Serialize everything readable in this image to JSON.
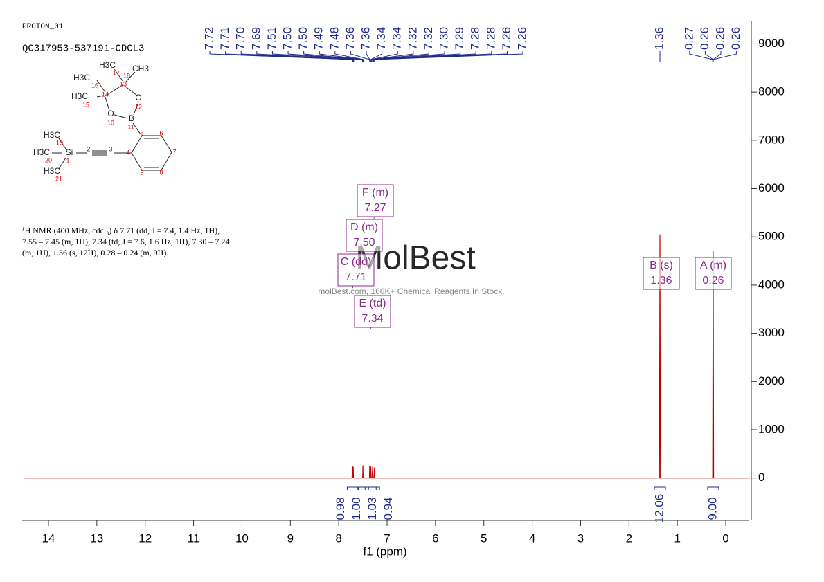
{
  "chart_data": {
    "type": "nmr",
    "experiment": "PROTON_01",
    "sample": "QC317953-537191-CDCL3",
    "description": [
      "¹H NMR (400 MHz, cdcl₃) δ 7.71 (dd, J = 7.4, 1.4 Hz, 1H),",
      "7.55 – 7.45 (m, 1H), 7.34 (td, J = 7.6, 1.6 Hz, 1H), 7.30 – 7.24",
      "(m, 1H), 1.36 (s, 12H), 0.28 – 0.24 (m, 9H)."
    ],
    "watermark": {
      "logo": "MolBest",
      "text": "molBest.com, 160K+ Chemical Reagents In Stock."
    },
    "structure": {
      "atoms": [
        {
          "label": "H3C",
          "number": 17
        },
        {
          "label": "CH3",
          "number": 18
        },
        {
          "label": "H3C",
          "number": 16
        },
        {
          "number": 13
        },
        {
          "number": 14
        },
        {
          "label": "H3C",
          "number": 15
        },
        {
          "label": "O",
          "number": 12
        },
        {
          "label": "O",
          "number": 10
        },
        {
          "label": "B",
          "number": 11
        },
        {
          "number": 5
        },
        {
          "number": 6
        },
        {
          "number": 7
        },
        {
          "number": 8
        },
        {
          "number": 9
        },
        {
          "number": 4
        },
        {
          "number": 3
        },
        {
          "number": 2
        },
        {
          "label": "Si",
          "number": 1
        },
        {
          "label": "H3C",
          "number": 19
        },
        {
          "label": "H3C",
          "number": 20
        },
        {
          "label": "H3C",
          "number": 21
        }
      ]
    },
    "x_label": "f1 (ppm)",
    "color": "#c00000",
    "x": [
      14.5,
      7.725,
      7.715,
      7.705,
      7.7,
      7.695,
      7.505,
      7.5,
      7.495,
      7.365,
      7.36,
      7.35,
      7.34,
      7.33,
      7.31,
      7.3,
      7.29,
      7.27,
      7.26,
      7.25,
      1.37,
      1.36,
      1.35,
      0.27,
      0.26,
      0.25,
      -0.5
    ],
    "values": [
      0,
      0,
      250,
      0,
      230,
      0,
      0,
      260,
      0,
      0,
      240,
      0,
      250,
      0,
      0,
      230,
      0,
      0,
      220,
      0,
      0,
      5050,
      0,
      0,
      4700,
      0,
      0
    ],
    "xlim": [
      14.55,
      -0.5
    ],
    "xticks": [
      14,
      13,
      12,
      11,
      10,
      9,
      8,
      7,
      6,
      5,
      4,
      3,
      2,
      1,
      0
    ],
    "ylim": [
      -880,
      9480
    ],
    "yticks": [
      0,
      1000,
      2000,
      3000,
      4000,
      5000,
      6000,
      7000,
      8000,
      9000
    ],
    "peak_labels": [
      7.72,
      7.71,
      {
        "value": 7.7,
        "label": "7.70"
      },
      7.69,
      7.51,
      {
        "value": 7.5,
        "label": "7.50"
      },
      {
        "value": 7.5,
        "label": "7.50"
      },
      7.49,
      7.48,
      7.36,
      7.36,
      7.34,
      7.34,
      7.32,
      7.32,
      {
        "value": 7.3,
        "label": "7.30"
      },
      7.29,
      7.28,
      7.28,
      7.26,
      7.26,
      1.36,
      0.27,
      0.26,
      0.26,
      0.26
    ],
    "multiplets": [
      {
        "name": "C (dd)",
        "shift": 7.71,
        "integral": 0.98
      },
      {
        "name": "D (m)",
        "shift": {
          "value": 7.5,
          "label": "7.50"
        },
        "integral": {
          "value": 1,
          "label": "1.00"
        }
      },
      {
        "name": "E (td)",
        "shift": 7.34,
        "integral": 1.03
      },
      {
        "name": "F (m)",
        "shift": 7.27,
        "integral": 0.94
      },
      {
        "name": "B (s)",
        "shift": 1.36,
        "integral": 12.06
      },
      {
        "name": "A (m)",
        "shift": 0.26,
        "integral": {
          "value": 9,
          "label": "9.00"
        }
      }
    ]
  }
}
